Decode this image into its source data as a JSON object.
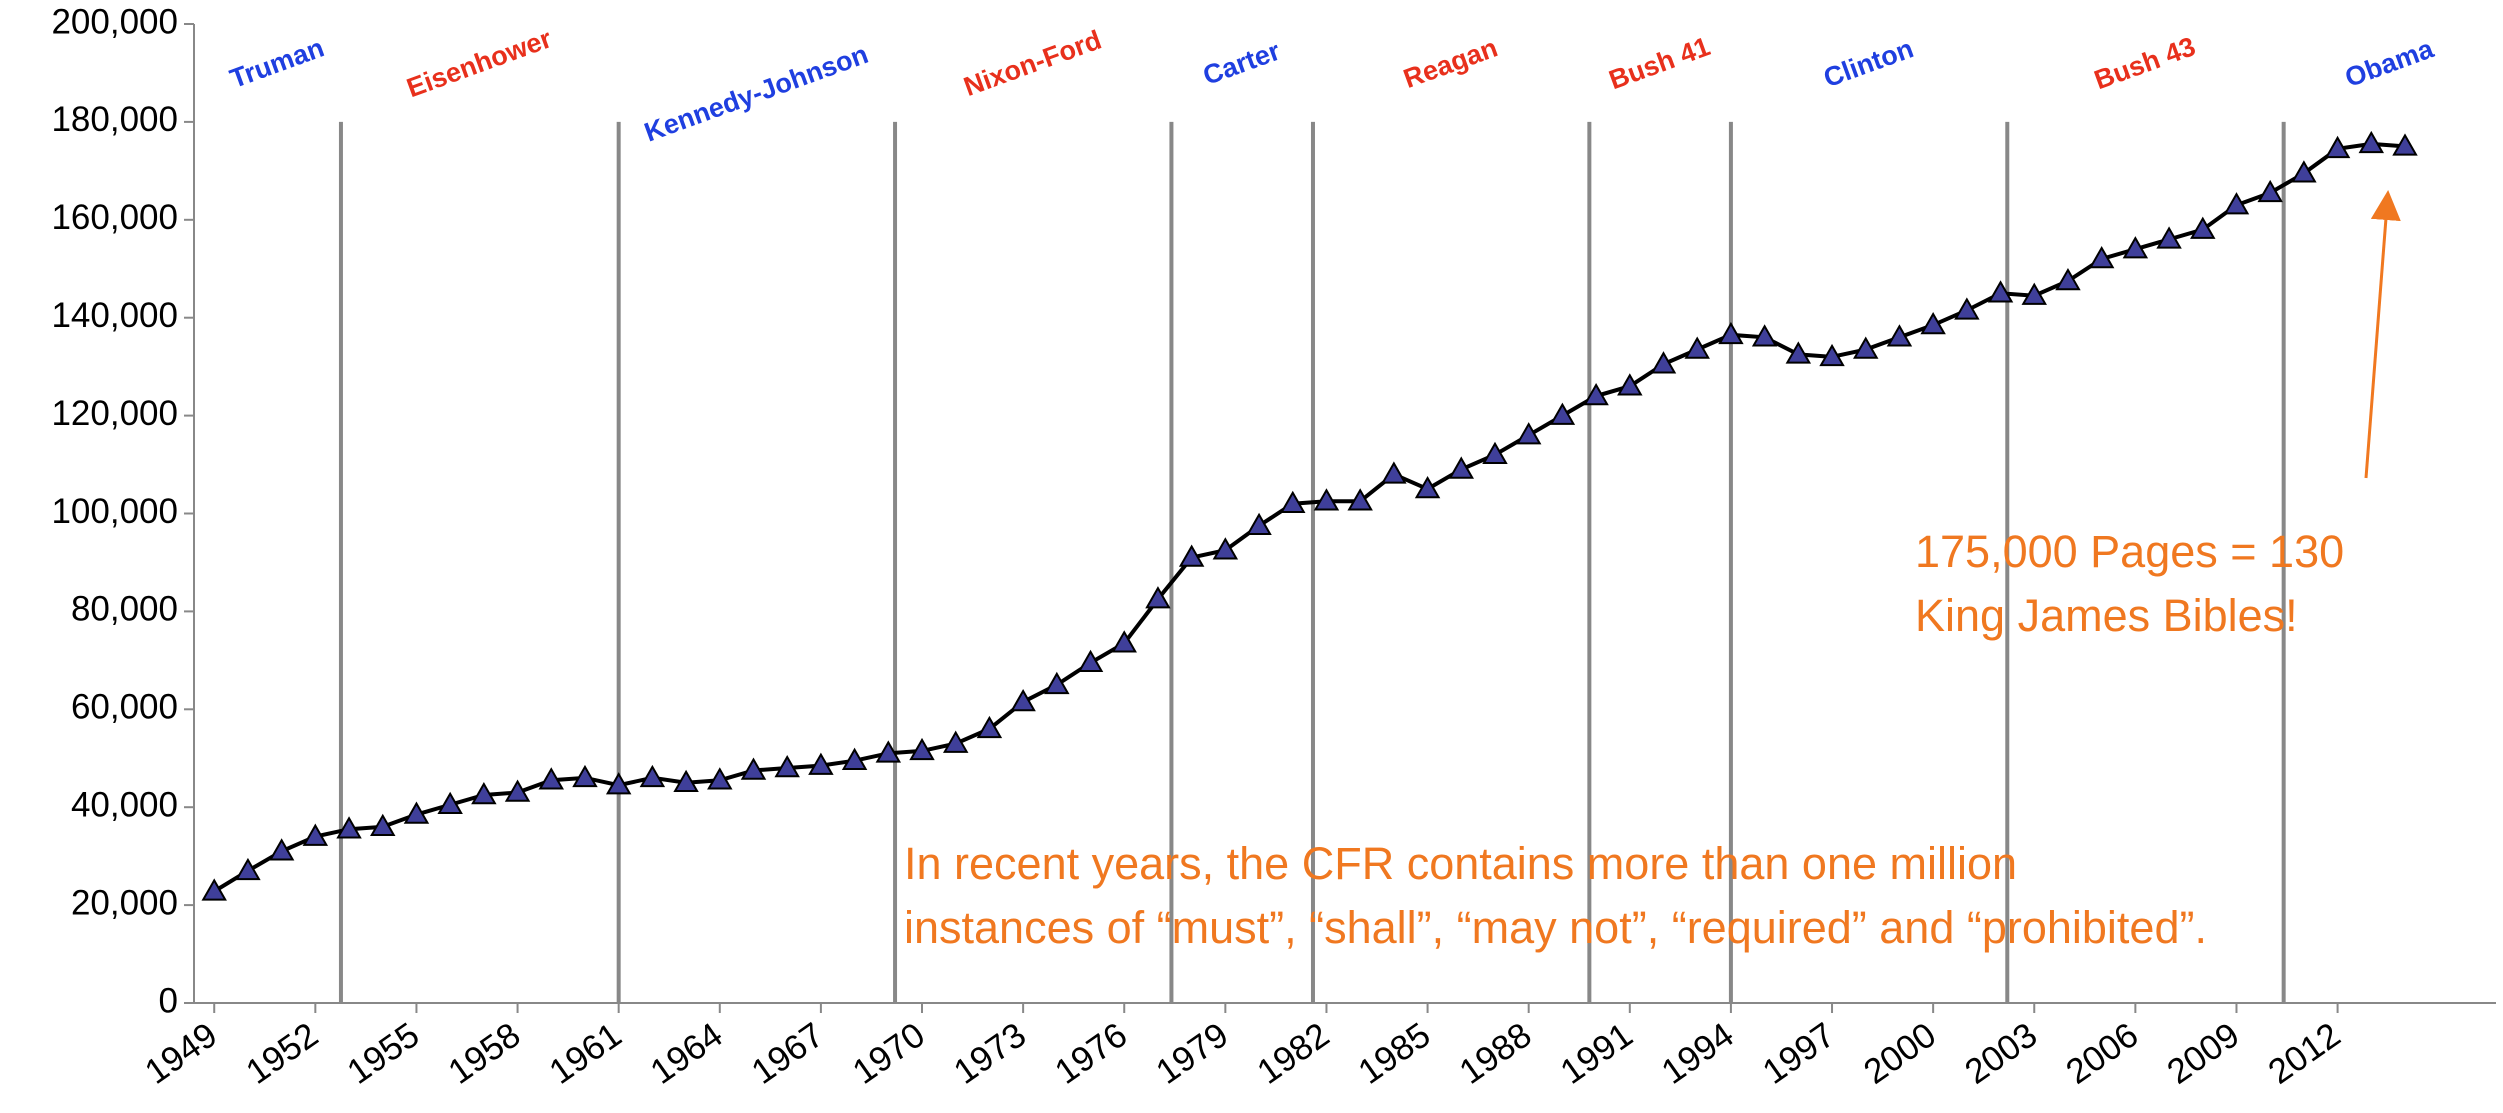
{
  "chart_data": {
    "type": "line",
    "x": [
      1949,
      1950,
      1951,
      1952,
      1953,
      1954,
      1955,
      1956,
      1957,
      1958,
      1959,
      1960,
      1961,
      1962,
      1963,
      1964,
      1965,
      1966,
      1967,
      1968,
      1969,
      1970,
      1971,
      1972,
      1973,
      1974,
      1975,
      1976,
      1977,
      1978,
      1979,
      1980,
      1981,
      1982,
      1983,
      1984,
      1985,
      1986,
      1987,
      1988,
      1989,
      1990,
      1991,
      1992,
      1993,
      1994,
      1995,
      1996,
      1997,
      1998,
      1999,
      2000,
      2001,
      2002,
      2003,
      2004,
      2005,
      2006,
      2007,
      2008,
      2009,
      2010,
      2011,
      2012,
      2013,
      2014
    ],
    "series": [
      {
        "color": "#3f3f9a",
        "values": [
          22800,
          27000,
          31000,
          34000,
          35500,
          36000,
          38500,
          40500,
          42500,
          43000,
          45500,
          46000,
          44500,
          46000,
          45000,
          45500,
          47500,
          48000,
          48500,
          49500,
          51000,
          51500,
          53000,
          56000,
          61500,
          65000,
          69500,
          73500,
          82500,
          91000,
          92500,
          97500,
          102000,
          102500,
          102500,
          108000,
          105000,
          109000,
          112000,
          116000,
          120000,
          124000,
          126000,
          130500,
          133500,
          136500,
          136000,
          132500,
          132000,
          133500,
          136000,
          138500,
          141500,
          145000,
          144500,
          147500,
          152000,
          154000,
          156000,
          158000,
          163000,
          165500,
          169500,
          174500,
          175500,
          175000
        ]
      }
    ],
    "xlim": [
      1948.4,
      2016.7
    ],
    "xticks": [
      1949,
      1952,
      1955,
      1958,
      1961,
      1964,
      1967,
      1970,
      1973,
      1976,
      1979,
      1982,
      1985,
      1988,
      1991,
      1994,
      1997,
      2000,
      2003,
      2006,
      2009,
      2012
    ],
    "ylim": [
      0,
      200000
    ],
    "yticks": [
      0,
      {
        "value": 20000,
        "label": "20,000"
      },
      {
        "value": 40000,
        "label": "40,000"
      },
      {
        "value": 60000,
        "label": "60,000"
      },
      {
        "value": 80000,
        "label": "80,000"
      },
      {
        "value": 100000,
        "label": "100,000"
      },
      {
        "value": 120000,
        "label": "120,000"
      },
      {
        "value": 140000,
        "label": "140,000"
      },
      {
        "value": 160000,
        "label": "160,000"
      },
      {
        "value": 180000,
        "label": "180,000"
      },
      {
        "value": 200000,
        "label": "200,000"
      }
    ],
    "dividers": [
      1952.76,
      1961.0,
      1969.2,
      1977.4,
      1981.6,
      1989.8,
      1994.0,
      2002.2,
      2010.4
    ],
    "eras": [
      {
        "name": "Truman",
        "color": "#1f3fe0"
      },
      {
        "name": "Eisenhower",
        "color": "#e8301c"
      },
      {
        "name": "Kennedy-Johnson",
        "color": "#1f3fe0"
      },
      {
        "name": "Nixon-Ford",
        "color": "#e8301c"
      },
      {
        "name": "Carter",
        "color": "#1f3fe0"
      },
      {
        "name": "Reagan",
        "color": "#e8301c"
      },
      {
        "name": "Bush 41",
        "color": "#e8301c"
      },
      {
        "name": "Clinton",
        "color": "#1f3fe0"
      },
      {
        "name": "Bush 43",
        "color": "#e8301c"
      },
      {
        "name": "Obama",
        "color": "#1f3fe0"
      }
    ],
    "annotations": [
      {
        "lines": [
          "175,000 Pages = 130",
          "King James Bibles!"
        ]
      },
      {
        "lines": [
          "In recent years, the CFR contains more than one million",
          "instances of “must”, “shall”, “may not”, “required” and “prohibited”."
        ]
      }
    ]
  }
}
